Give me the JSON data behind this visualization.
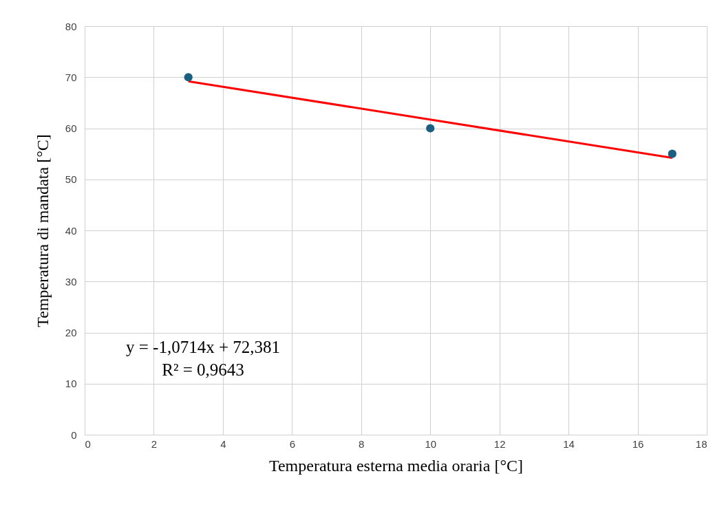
{
  "chart_data": {
    "type": "scatter",
    "xlabel": "Temperatura esterna media oraria [°C]",
    "ylabel": "Temperatura di mandata [°C]",
    "series": [
      {
        "color": "#1a5f7f",
        "marker": "circle",
        "x": [
          3,
          10,
          17
        ],
        "values": [
          70,
          60,
          55
        ]
      },
      {
        "type": "line",
        "color": "#ff0000",
        "x": [
          3,
          17
        ],
        "values": [
          69.2,
          54.2
        ]
      }
    ],
    "xlim": [
      0,
      18
    ],
    "xticks": [
      0,
      2,
      4,
      6,
      8,
      10,
      12,
      14,
      16,
      18
    ],
    "ylim": [
      0,
      80
    ],
    "yticks": [
      0,
      10,
      20,
      30,
      40,
      50,
      60,
      70,
      80
    ],
    "grid": true,
    "annotations": [
      "y = -1,0714x + 72,381",
      "R² = 0,9643"
    ]
  }
}
